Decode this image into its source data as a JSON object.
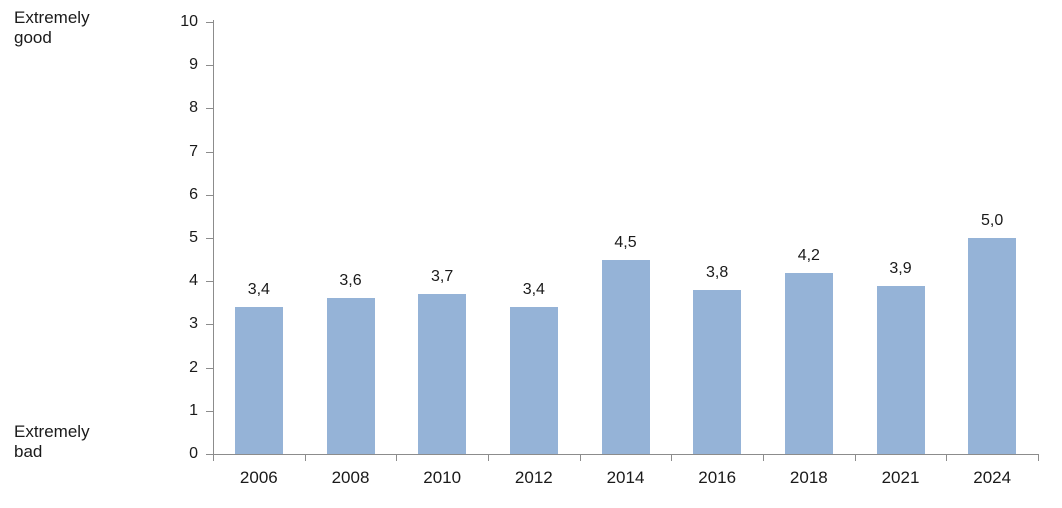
{
  "chart_data": {
    "type": "bar",
    "categories": [
      "2006",
      "2008",
      "2010",
      "2012",
      "2014",
      "2016",
      "2018",
      "2021",
      "2024"
    ],
    "values": [
      3.4,
      3.6,
      3.7,
      3.4,
      4.5,
      3.8,
      4.2,
      3.9,
      5.0
    ],
    "value_labels": [
      "3,4",
      "3,6",
      "3,7",
      "3,4",
      "4,5",
      "3,8",
      "4,2",
      "3,9",
      "5,0"
    ],
    "title": "",
    "xlabel": "",
    "ylabel": "",
    "ylim": [
      0,
      10
    ],
    "y_ticks": [
      0,
      1,
      2,
      3,
      4,
      5,
      6,
      7,
      8,
      9,
      10
    ],
    "y_axis_top_caption": "Extremely\ngood",
    "y_axis_bottom_caption": "Extremely\nbad",
    "grid": "off",
    "legend": "none",
    "bar_color": "#95b3d7",
    "axis_color": "#8c8c8c",
    "text_color": "#1a1a1a"
  }
}
